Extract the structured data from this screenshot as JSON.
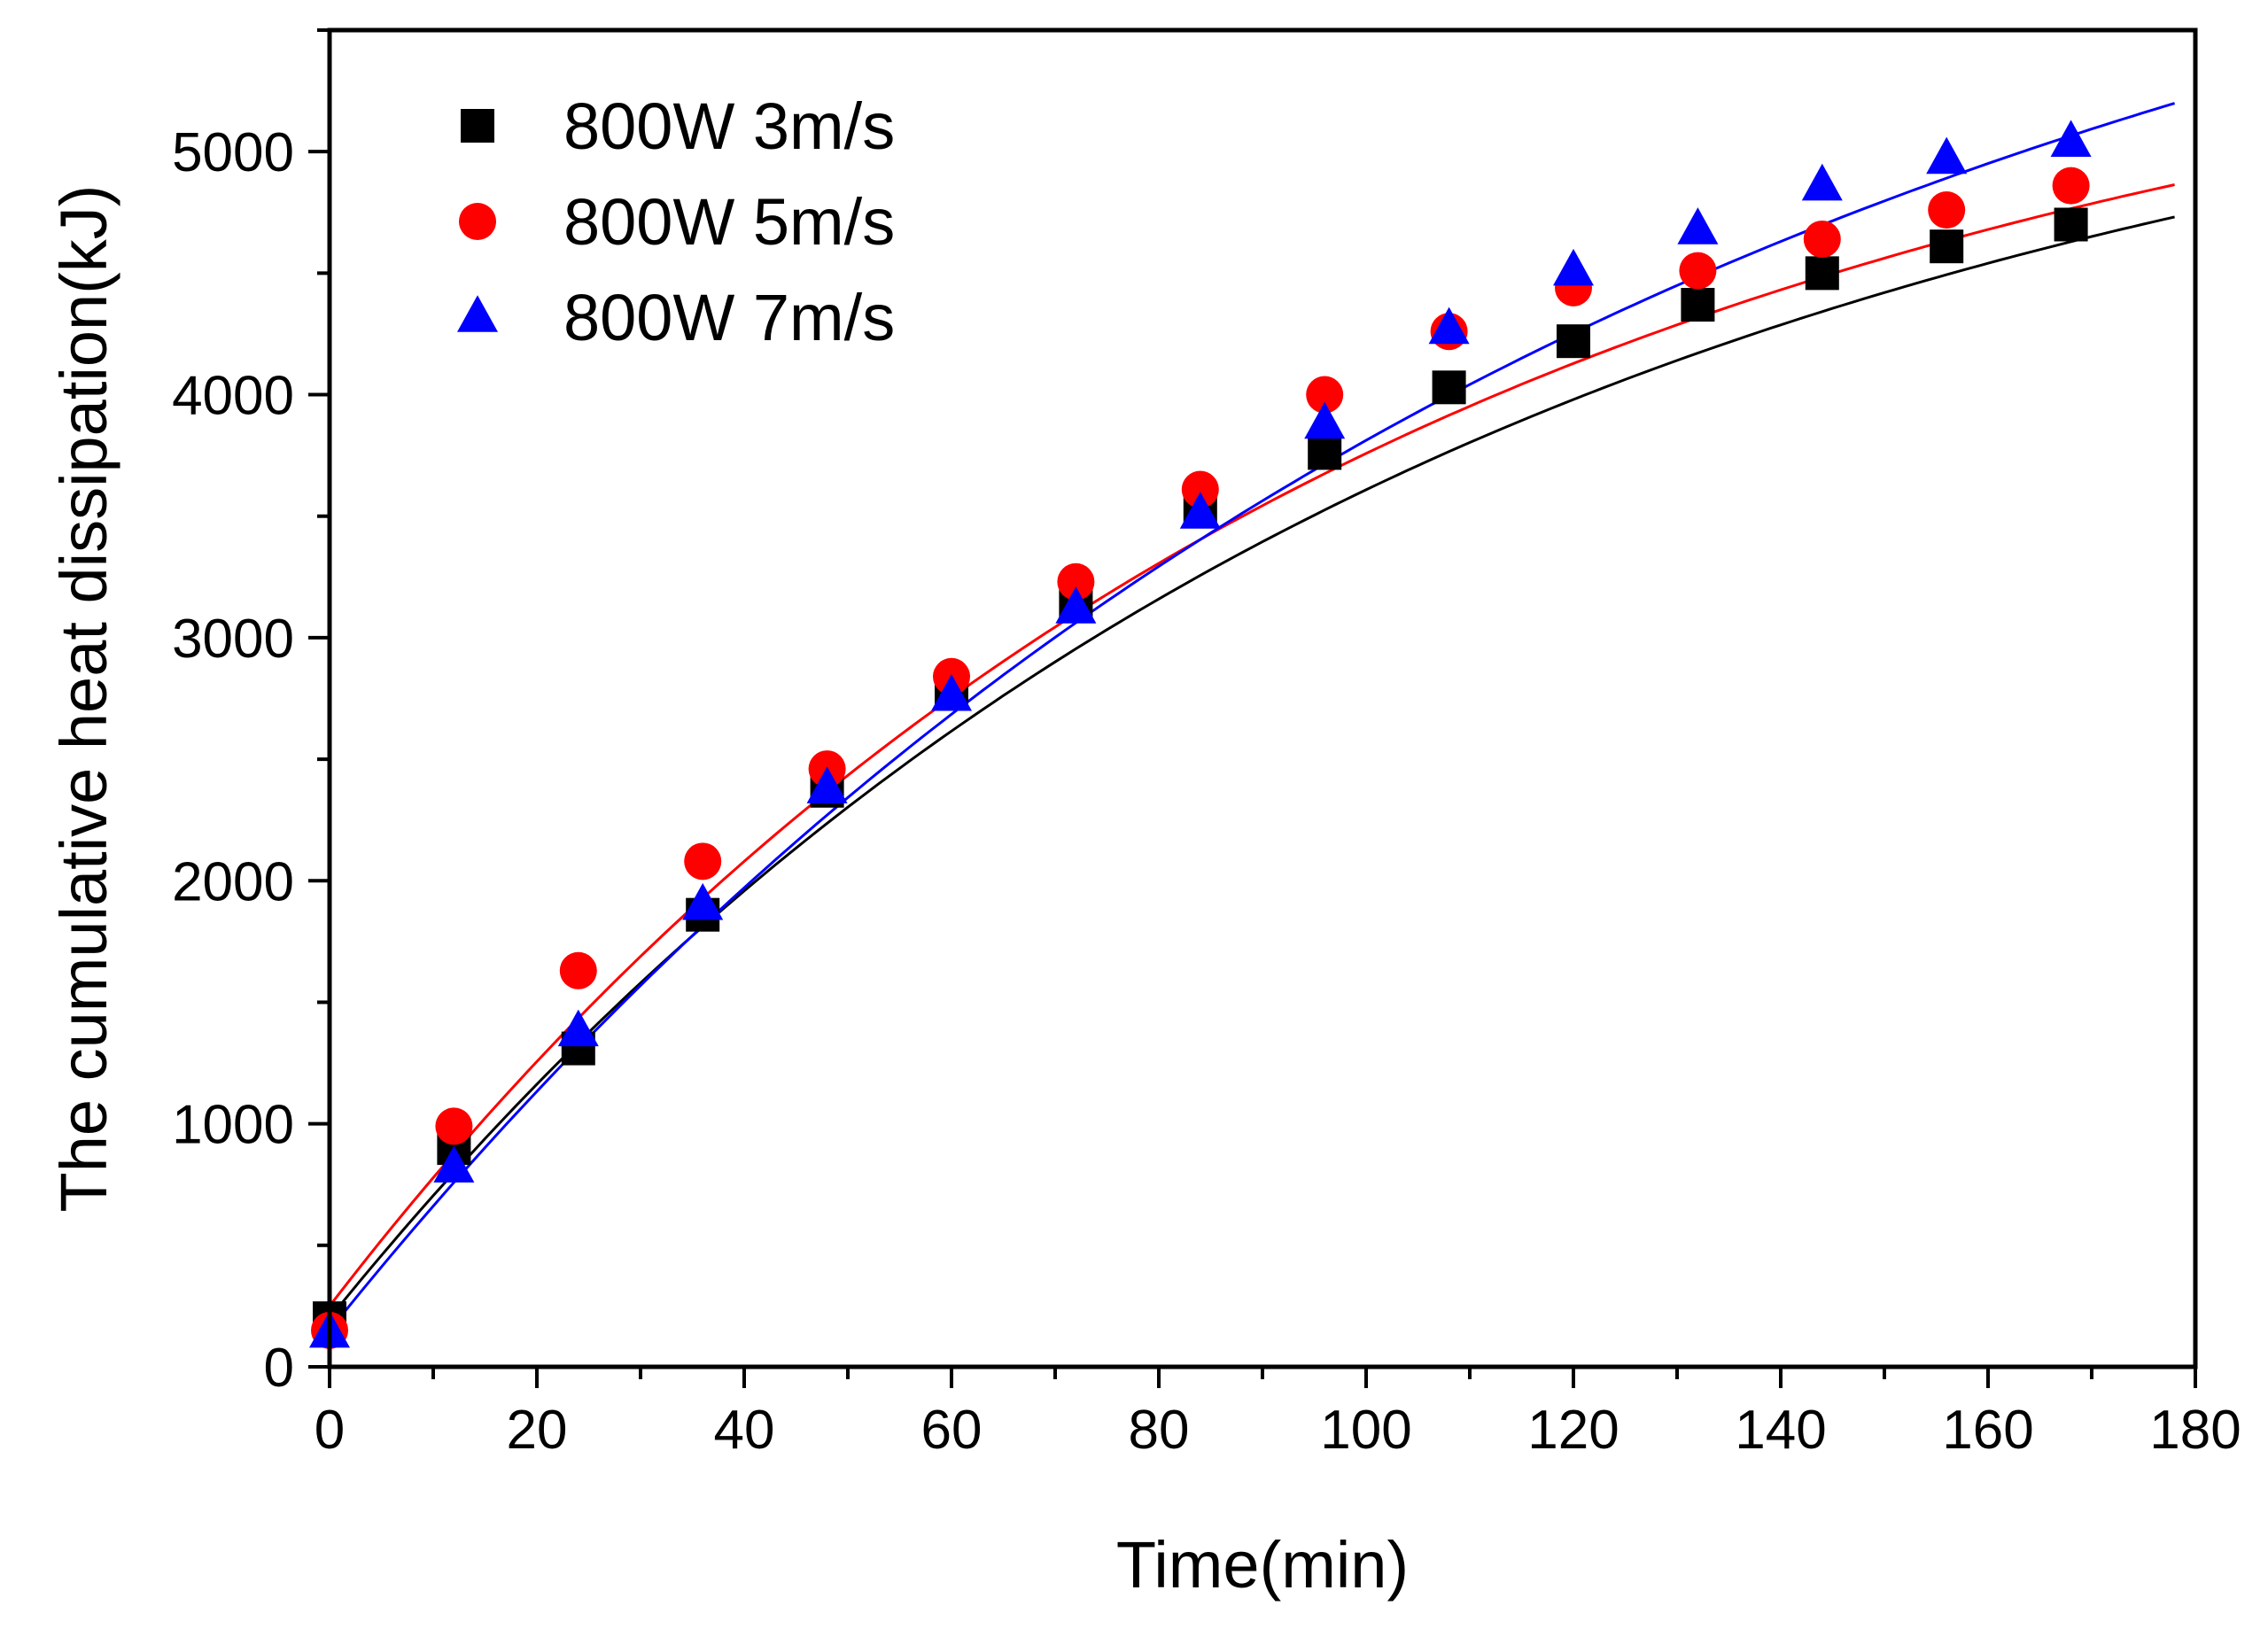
{
  "chart_data": {
    "type": "scatter",
    "title": "",
    "xlabel": "Time(min)",
    "ylabel": "The cumulative heat dissipation(kJ)",
    "xlim": [
      0,
      180
    ],
    "ylim": [
      0,
      5500
    ],
    "x_ticks": [
      0,
      20,
      40,
      60,
      80,
      100,
      120,
      140,
      160,
      180
    ],
    "y_ticks": [
      0,
      1000,
      2000,
      3000,
      4000,
      5000
    ],
    "grid": false,
    "legend_position": "top-left",
    "x": [
      0,
      12,
      24,
      36,
      48,
      60,
      72,
      84,
      96,
      108,
      120,
      132,
      144,
      156,
      168
    ],
    "series": [
      {
        "name": "800W 3m/s",
        "marker": "square",
        "color": "#000000",
        "values": [
          200,
          900,
          1310,
          1860,
          2370,
          2790,
          3150,
          3520,
          3760,
          4030,
          4220,
          4370,
          4500,
          4610,
          4700
        ],
        "fit_line": {
          "a": 5750,
          "b": 5550,
          "tau": 105
        }
      },
      {
        "name": "800W 5m/s",
        "marker": "circle",
        "color": "#ff0000",
        "values": [
          150,
          990,
          1630,
          2080,
          2460,
          2840,
          3230,
          3610,
          4000,
          4260,
          4440,
          4510,
          4640,
          4760,
          4860
        ],
        "fit_line": {
          "a": 5800,
          "b": 5550,
          "tau": 100
        }
      },
      {
        "name": "800W 7m/s",
        "marker": "triangle",
        "color": "#0000ff",
        "values": [
          140,
          820,
          1380,
          1900,
          2380,
          2760,
          3120,
          3510,
          3880,
          4270,
          4510,
          4680,
          4860,
          4970,
          5040
        ],
        "fit_line": {
          "a": 6800,
          "b": 6650,
          "tau": 125
        }
      }
    ]
  }
}
